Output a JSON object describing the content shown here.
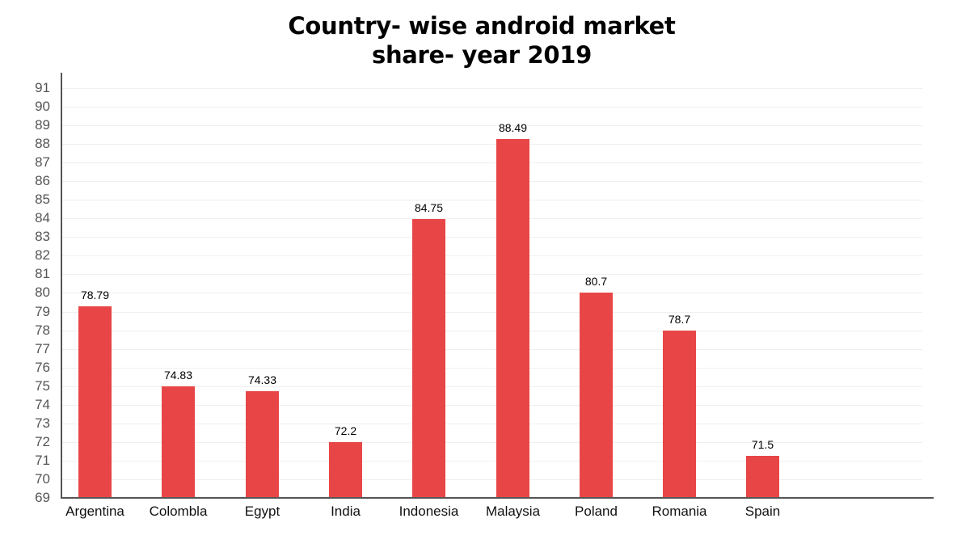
{
  "title": {
    "line1": "Country- wise android market",
    "line2": "share- year 2019"
  },
  "colors": {
    "bar": "#e84646",
    "axis": "#555555",
    "grid": "#efefef"
  },
  "y_ticks": [
    "91",
    "90",
    "89",
    "88",
    "87",
    "86",
    "85",
    "84",
    "83",
    "82",
    "81",
    "80",
    "79",
    "78",
    "77",
    "76",
    "75",
    "74",
    "73",
    "72",
    "71",
    "70",
    "69"
  ],
  "bars": [
    {
      "category": "Argentina",
      "label": "78.79"
    },
    {
      "category": "Colombla",
      "label": "74.83"
    },
    {
      "category": "Egypt",
      "label": "74.33"
    },
    {
      "category": "India",
      "label": "72.2"
    },
    {
      "category": "Indonesia",
      "label": "84.75"
    },
    {
      "category": "Malaysia",
      "label": "88.49"
    },
    {
      "category": "Poland",
      "label": "80.7"
    },
    {
      "category": "Romania",
      "label": "78.7"
    },
    {
      "category": "Spain",
      "label": "71.5"
    }
  ],
  "chart_data": {
    "type": "bar",
    "title": "Country- wise android market share- year 2019",
    "categories": [
      "Argentina",
      "Colombla",
      "Egypt",
      "India",
      "Indonesia",
      "Malaysia",
      "Poland",
      "Romania",
      "Spain"
    ],
    "values": [
      78.79,
      74.83,
      74.33,
      72.2,
      84.75,
      88.49,
      80.7,
      78.7,
      71.5
    ],
    "xlabel": "",
    "ylabel": "",
    "ylim": [
      69,
      91
    ],
    "yticks": [
      69,
      70,
      71,
      72,
      73,
      74,
      75,
      76,
      77,
      78,
      79,
      80,
      81,
      82,
      83,
      84,
      85,
      86,
      87,
      88,
      89,
      90,
      91
    ],
    "grid": true,
    "legend": null,
    "data_labels": true,
    "bar_color": "#e84646"
  }
}
